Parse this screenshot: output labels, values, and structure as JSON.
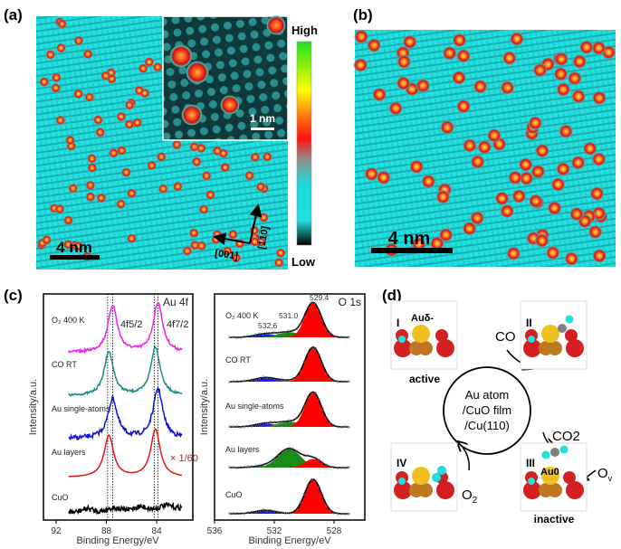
{
  "panels": {
    "a": {
      "label": "(a)",
      "scale_bar": "4 nm",
      "inset_scale_bar": "1 nm",
      "direction_1": "[001]",
      "direction_2": "[1̅1̅0]",
      "colorbar_high": "High",
      "colorbar_low": "Low"
    },
    "b": {
      "label": "(b)",
      "scale_bar": "4 nm"
    },
    "c": {
      "label": "(c)"
    },
    "d": {
      "label": "(d)",
      "center_lines": [
        "Au atom",
        "/CuO film",
        "/Cu(110)"
      ],
      "states": [
        {
          "numeral": "I",
          "species": "Auδ-",
          "caption": "active"
        },
        {
          "numeral": "II",
          "species": "",
          "caption": ""
        },
        {
          "numeral": "III",
          "species": "Au0",
          "caption": "inactive"
        },
        {
          "numeral": "IV",
          "species": "",
          "caption": ""
        }
      ],
      "reactants": {
        "co": "CO",
        "co2": "CO2",
        "o2": "O2",
        "ov": "Ov"
      }
    }
  },
  "colors": {
    "stm_background": "#22e0e0",
    "adatom": "#ff2020",
    "o2_400k": "#ee22ee",
    "co_rt": "#1a8c86",
    "au_single": "#1010e0",
    "au_layers": "#ee1111",
    "cuo": "#000000",
    "fit_red": "#ff0000",
    "fit_green": "#1a8a1a",
    "fit_blue": "#1a1ae0",
    "o_atom": "#d42020",
    "au_atom": "#f0c020",
    "cu_atom": "#c07820",
    "c_atom": "#808080",
    "o_mol": "#20e0e0"
  },
  "chart_data": [
    {
      "type": "line",
      "title": "Au 4f",
      "xlabel": "Binding Energy/eV",
      "ylabel": "Intensity/a.u.",
      "xlim": [
        93,
        81.1
      ],
      "x_ticks": [
        92,
        88,
        84
      ],
      "reversed_x": true,
      "peak_labels": [
        "4f5/2",
        "4f7/2"
      ],
      "reference_lines": [
        87.9,
        87.5,
        84.2,
        83.9
      ],
      "scale_annotation": "× 1/60",
      "series": [
        {
          "name": "O₂ 400 K",
          "peaks": [
            87.5,
            83.9
          ],
          "relative_height": [
            0.95,
            1.0
          ]
        },
        {
          "name": "CO RT",
          "peaks": [
            87.8,
            84.1
          ],
          "relative_height": [
            0.9,
            1.0
          ]
        },
        {
          "name": "Au single-atoms",
          "peaks": [
            87.5,
            83.9
          ],
          "relative_height": [
            0.8,
            1.0
          ]
        },
        {
          "name": "Au layers",
          "peaks": [
            87.8,
            84.1
          ],
          "relative_height": [
            0.87,
            1.0
          ]
        },
        {
          "name": "CuO",
          "peaks": [],
          "relative_height": []
        }
      ]
    },
    {
      "type": "area",
      "title": "O 1s",
      "xlabel": "Binding Energy/eV",
      "ylabel": "Intensity/a.u.",
      "xlim": [
        536,
        526
      ],
      "x_ticks": [
        536,
        532,
        528
      ],
      "reversed_x": true,
      "peak_labels": [
        "529.4",
        "531.0",
        "532.6"
      ],
      "components": [
        529.4,
        531.0,
        532.6
      ],
      "series": [
        {
          "name": "O₂ 400 K",
          "component_heights": [
            1.0,
            0.15,
            0.1
          ]
        },
        {
          "name": "CO RT",
          "component_heights": [
            1.0,
            0.03,
            0.12
          ]
        },
        {
          "name": "Au single-atoms",
          "component_heights": [
            1.0,
            0.15,
            0.1
          ]
        },
        {
          "name": "Au layers",
          "component_heights": [
            0.25,
            0.55,
            0.05
          ]
        },
        {
          "name": "CuO",
          "component_heights": [
            1.0,
            0.0,
            0.1
          ]
        }
      ]
    }
  ]
}
